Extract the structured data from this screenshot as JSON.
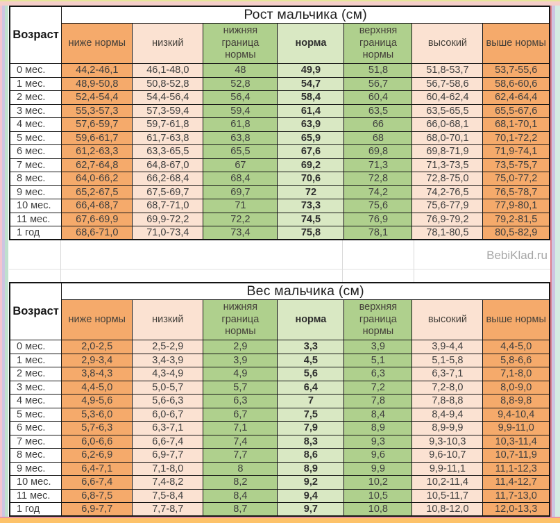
{
  "watermark": "BebiKlad.ru",
  "colors": {
    "orange": "#f5aa6b",
    "peach": "#fbe2d2",
    "green": "#afd08d",
    "norm": "#d9e8c3",
    "watermark": "#a6a6a6",
    "edgeYellow": "#e6e69a",
    "edgeTopPink": "#f6cfc9",
    "edgeBottomPink": "#e9949f",
    "edgeOrangeBar": "#fdc269",
    "gutterPink": "#f4c5ce",
    "gutterLavender": "#cdc5e2",
    "gutterMint": "#bfe0cd",
    "gutterRedLine": "#dd7d8a",
    "gutterCyan": "#d4ece3"
  },
  "chart_data": [
    {
      "type": "table",
      "title": "Рост мальчика (см)",
      "age_label": "Возраст",
      "columns": [
        "ниже нормы",
        "низкий",
        "нижняя граница нормы",
        "норма",
        "верхняя граница нормы",
        "высокий",
        "выше нормы"
      ],
      "rows": [
        {
          "age": "0 мес.",
          "values": [
            "44,2-46,1",
            "46,1-48,0",
            "48",
            "49,9",
            "51,8",
            "51,8-53,7",
            "53,7-55,6"
          ]
        },
        {
          "age": "1 мес.",
          "values": [
            "48,9-50,8",
            "50,8-52,8",
            "52,8",
            "54,7",
            "56,7",
            "56,7-58,6",
            "58,6-60,6"
          ]
        },
        {
          "age": "2 мес.",
          "values": [
            "52,4-54,4",
            "54,4-56,4",
            "56,4",
            "58,4",
            "60,4",
            "60,4-62,4",
            "62,4-64,4"
          ]
        },
        {
          "age": "3 мес.",
          "values": [
            "55,3-57,3",
            "57,3-59,4",
            "59,4",
            "61,4",
            "63,5",
            "63,5-65,5",
            "65,5-67,6"
          ]
        },
        {
          "age": "4 мес.",
          "values": [
            "57,6-59,7",
            "59,7-61,8",
            "61,8",
            "63,9",
            "66",
            "66,0-68,1",
            "68,1-70,1"
          ]
        },
        {
          "age": "5 мес.",
          "values": [
            "59,6-61,7",
            "61,7-63,8",
            "63,8",
            "65,9",
            "68",
            "68,0-70,1",
            "70,1-72,2"
          ]
        },
        {
          "age": "6 мес.",
          "values": [
            "61,2-63,3",
            "63,3-65,5",
            "65,5",
            "67,6",
            "69,8",
            "69,8-71,9",
            "71,9-74,1"
          ]
        },
        {
          "age": "7 мес.",
          "values": [
            "62,7-64,8",
            "64,8-67,0",
            "67",
            "69,2",
            "71,3",
            "71,3-73,5",
            "73,5-75,7"
          ]
        },
        {
          "age": "8 мес.",
          "values": [
            "64,0-66,2",
            "66,2-68,4",
            "68,4",
            "70,6",
            "72,8",
            "72,8-75,0",
            "75,0-77,2"
          ]
        },
        {
          "age": "9 мес.",
          "values": [
            "65,2-67,5",
            "67,5-69,7",
            "69,7",
            "72",
            "74,2",
            "74,2-76,5",
            "76,5-78,7"
          ]
        },
        {
          "age": "10 мес.",
          "values": [
            "66,4-68,7",
            "68,7-71,0",
            "71",
            "73,3",
            "75,6",
            "75,6-77,9",
            "77,9-80,1"
          ]
        },
        {
          "age": "11 мес.",
          "values": [
            "67,6-69,9",
            "69,9-72,2",
            "72,2",
            "74,5",
            "76,9",
            "76,9-79,2",
            "79,2-81,5"
          ]
        },
        {
          "age": "1 год",
          "values": [
            "68,6-71,0",
            "71,0-73,4",
            "73,4",
            "75,8",
            "78,1",
            "78,1-80,5",
            "80,5-82,9"
          ]
        }
      ]
    },
    {
      "type": "table",
      "title": "Вес мальчика (см)",
      "age_label": "Возраст",
      "columns": [
        "ниже нормы",
        "низкий",
        "нижняя граница нормы",
        "норма",
        "верхняя граница нормы",
        "высокий",
        "выше нормы"
      ],
      "rows": [
        {
          "age": "0 мес.",
          "values": [
            "2,0-2,5",
            "2,5-2,9",
            "2,9",
            "3,3",
            "3,9",
            "3,9-4,4",
            "4,4-5,0"
          ]
        },
        {
          "age": "1 мес.",
          "values": [
            "2,9-3,4",
            "3,4-3,9",
            "3,9",
            "4,5",
            "5,1",
            "5,1-5,8",
            "5,8-6,6"
          ]
        },
        {
          "age": "2 мес.",
          "values": [
            "3,8-4,3",
            "4,3-4,9",
            "4,9",
            "5,6",
            "6,3",
            "6,3-7,1",
            "7,1-8,0"
          ]
        },
        {
          "age": "3 мес.",
          "values": [
            "4,4-5,0",
            "5,0-5,7",
            "5,7",
            "6,4",
            "7,2",
            "7,2-8,0",
            "8,0-9,0"
          ]
        },
        {
          "age": "4 мес.",
          "values": [
            "4,9-5,6",
            "5,6-6,3",
            "6,3",
            "7",
            "7,8",
            "7,8-8,8",
            "8,8-9,8"
          ]
        },
        {
          "age": "5 мес.",
          "values": [
            "5,3-6,0",
            "6,0-6,7",
            "6,7",
            "7,5",
            "8,4",
            "8,4-9,4",
            "9,4-10,4"
          ]
        },
        {
          "age": "6 мес.",
          "values": [
            "5,7-6,3",
            "6,3-7,1",
            "7,1",
            "7,9",
            "8,9",
            "8,9-9,9",
            "9,9-11,0"
          ]
        },
        {
          "age": "7 мес.",
          "values": [
            "6,0-6,6",
            "6,6-7,4",
            "7,4",
            "8,3",
            "9,3",
            "9,3-10,3",
            "10,3-11,4"
          ]
        },
        {
          "age": "8 мес.",
          "values": [
            "6,2-6,9",
            "6,9-7,7",
            "7,7",
            "8,6",
            "9,6",
            "9,6-10,7",
            "10,7-11,9"
          ]
        },
        {
          "age": "9 мес.",
          "values": [
            "6,4-7,1",
            "7,1-8,0",
            "8",
            "8,9",
            "9,9",
            "9,9-11,1",
            "11,1-12,3"
          ]
        },
        {
          "age": "10 мес.",
          "values": [
            "6,6-7,4",
            "7,4-8,2",
            "8,2",
            "9,2",
            "10,2",
            "10,2-11,4",
            "11,4-12,7"
          ]
        },
        {
          "age": "11 мес.",
          "values": [
            "6,8-7,5",
            "7,5-8,4",
            "8,4",
            "9,4",
            "10,5",
            "10,5-11,7",
            "11,7-13,0"
          ]
        },
        {
          "age": "1 год",
          "values": [
            "6,9-7,7",
            "7,7-8,7",
            "8,7",
            "9,7",
            "10,8",
            "10,8-12,0",
            "12,0-13,3"
          ]
        }
      ]
    }
  ]
}
